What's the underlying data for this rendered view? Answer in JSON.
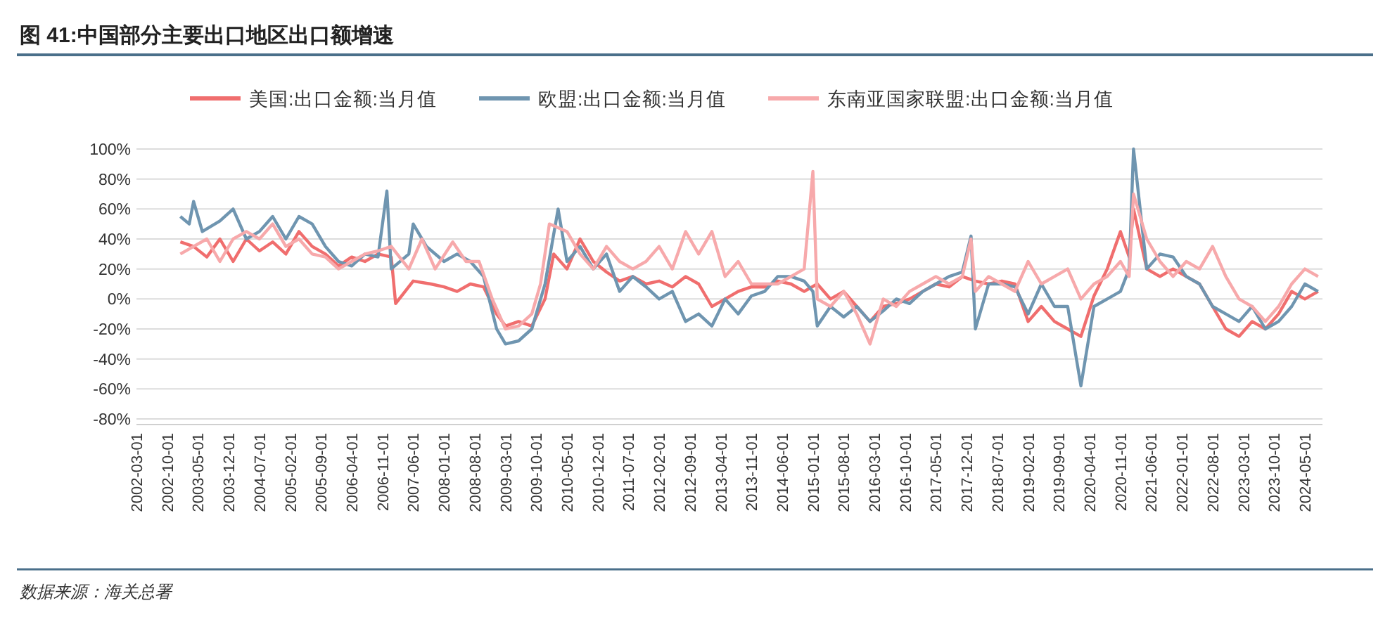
{
  "chart_data": {
    "type": "line",
    "title": "图 41:中国部分主要出口地区出口额增速",
    "annotations": [
      "数据来源：海关总署"
    ],
    "xlim": [
      "2002-03",
      "2024-09"
    ],
    "xticks": [
      "2002-03-01",
      "2002-10-01",
      "2003-05-01",
      "2003-12-01",
      "2004-07-01",
      "2005-02-01",
      "2005-09-01",
      "2006-04-01",
      "2006-11-01",
      "2007-06-01",
      "2008-01-01",
      "2008-08-01",
      "2009-03-01",
      "2009-10-01",
      "2010-05-01",
      "2010-12-01",
      "2011-07-01",
      "2012-02-01",
      "2012-09-01",
      "2013-04-01",
      "2013-11-01",
      "2014-06-01",
      "2015-01-01",
      "2015-08-01",
      "2016-03-01",
      "2016-10-01",
      "2017-05-01",
      "2017-12-01",
      "2018-07-01",
      "2019-02-01",
      "2019-09-01",
      "2020-04-01",
      "2020-11-01",
      "2021-06-01",
      "2022-01-01",
      "2022-08-01",
      "2023-03-01",
      "2023-10-01",
      "2024-05-01"
    ],
    "ylim": [
      -80,
      100
    ],
    "yticks": [
      {
        "value": -80,
        "label": "-80%"
      },
      {
        "value": -60,
        "label": "-60%"
      },
      {
        "value": -40,
        "label": "-40%"
      },
      {
        "value": -20,
        "label": "-20%"
      },
      {
        "value": 0,
        "label": "0%"
      },
      {
        "value": 20,
        "label": "20%"
      },
      {
        "value": 40,
        "label": "40%"
      },
      {
        "value": 60,
        "label": "60%"
      },
      {
        "value": 80,
        "label": "80%"
      },
      {
        "value": 100,
        "label": "100%"
      }
    ],
    "grid": "y",
    "legend": "top",
    "marker": "none",
    "line_style": "solid",
    "series": [
      {
        "name": "美国:出口金额:当月值",
        "color": "#f06e6e",
        "x": [
          "2003-01",
          "2003-04",
          "2003-07",
          "2003-10",
          "2004-01",
          "2004-04",
          "2004-07",
          "2004-10",
          "2005-01",
          "2005-04",
          "2005-07",
          "2005-10",
          "2006-01",
          "2006-04",
          "2006-07",
          "2006-10",
          "2007-01",
          "2007-02",
          "2007-06",
          "2007-10",
          "2008-01",
          "2008-04",
          "2008-07",
          "2008-10",
          "2009-01",
          "2009-03",
          "2009-06",
          "2009-09",
          "2009-12",
          "2010-02",
          "2010-05",
          "2010-08",
          "2010-11",
          "2011-02",
          "2011-05",
          "2011-08",
          "2011-11",
          "2012-02",
          "2012-05",
          "2012-08",
          "2012-11",
          "2013-02",
          "2013-05",
          "2013-08",
          "2013-11",
          "2014-02",
          "2014-05",
          "2014-08",
          "2014-11",
          "2015-02",
          "2015-05",
          "2015-08",
          "2015-11",
          "2016-02",
          "2016-05",
          "2016-08",
          "2016-11",
          "2017-02",
          "2017-05",
          "2017-08",
          "2017-11",
          "2018-02",
          "2018-05",
          "2018-08",
          "2018-11",
          "2019-02",
          "2019-05",
          "2019-08",
          "2019-11",
          "2020-02",
          "2020-05",
          "2020-08",
          "2020-11",
          "2021-01",
          "2021-02",
          "2021-05",
          "2021-08",
          "2021-11",
          "2022-02",
          "2022-05",
          "2022-08",
          "2022-11",
          "2023-02",
          "2023-05",
          "2023-08",
          "2023-11",
          "2024-02",
          "2024-05",
          "2024-08"
        ],
        "values": [
          38,
          35,
          28,
          40,
          25,
          40,
          32,
          38,
          30,
          45,
          35,
          30,
          22,
          28,
          25,
          30,
          28,
          -3,
          12,
          10,
          8,
          5,
          10,
          8,
          -10,
          -18,
          -15,
          -18,
          0,
          30,
          20,
          40,
          25,
          18,
          12,
          15,
          10,
          12,
          8,
          15,
          10,
          -5,
          0,
          5,
          8,
          8,
          12,
          10,
          5,
          10,
          0,
          5,
          -5,
          -15,
          -5,
          -3,
          0,
          5,
          10,
          8,
          15,
          12,
          10,
          12,
          10,
          -15,
          -5,
          -15,
          -20,
          -25,
          2,
          20,
          45,
          28,
          60,
          20,
          15,
          20,
          15,
          10,
          -5,
          -20,
          -25,
          -15,
          -20,
          -10,
          5,
          0,
          5
        ]
      },
      {
        "name": "欧盟:出口金额:当月值",
        "color": "#6f95b0",
        "x": [
          "2003-01",
          "2003-03",
          "2003-04",
          "2003-06",
          "2003-10",
          "2004-01",
          "2004-04",
          "2004-07",
          "2004-10",
          "2005-01",
          "2005-04",
          "2005-07",
          "2005-10",
          "2006-01",
          "2006-04",
          "2006-07",
          "2006-10",
          "2006-12",
          "2007-01",
          "2007-05",
          "2007-06",
          "2007-09",
          "2008-01",
          "2008-04",
          "2008-07",
          "2008-10",
          "2009-01",
          "2009-03",
          "2009-06",
          "2009-09",
          "2009-12",
          "2010-03",
          "2010-05",
          "2010-08",
          "2010-11",
          "2011-02",
          "2011-05",
          "2011-08",
          "2011-11",
          "2012-02",
          "2012-05",
          "2012-08",
          "2012-11",
          "2013-02",
          "2013-05",
          "2013-08",
          "2013-11",
          "2014-02",
          "2014-05",
          "2014-08",
          "2014-11",
          "2015-01",
          "2015-02",
          "2015-05",
          "2015-08",
          "2015-11",
          "2016-02",
          "2016-05",
          "2016-08",
          "2016-11",
          "2017-02",
          "2017-05",
          "2017-08",
          "2017-11",
          "2018-01",
          "2018-02",
          "2018-05",
          "2018-08",
          "2018-11",
          "2019-02",
          "2019-05",
          "2019-08",
          "2019-11",
          "2020-02",
          "2020-05",
          "2020-08",
          "2020-11",
          "2021-01",
          "2021-02",
          "2021-05",
          "2021-08",
          "2021-11",
          "2022-02",
          "2022-05",
          "2022-08",
          "2022-11",
          "2023-02",
          "2023-05",
          "2023-08",
          "2023-11",
          "2024-02",
          "2024-05",
          "2024-08"
        ],
        "values": [
          55,
          50,
          65,
          45,
          52,
          60,
          40,
          45,
          55,
          40,
          55,
          50,
          35,
          25,
          22,
          30,
          28,
          72,
          20,
          30,
          50,
          35,
          25,
          30,
          25,
          15,
          -20,
          -30,
          -28,
          -20,
          10,
          60,
          25,
          35,
          20,
          30,
          5,
          15,
          8,
          0,
          5,
          -15,
          -10,
          -18,
          0,
          -10,
          2,
          5,
          15,
          15,
          12,
          5,
          -18,
          -5,
          -12,
          -5,
          -15,
          -8,
          0,
          -3,
          5,
          10,
          15,
          18,
          42,
          -20,
          10,
          10,
          8,
          -10,
          10,
          -5,
          -5,
          -58,
          -5,
          0,
          5,
          20,
          100,
          20,
          30,
          28,
          15,
          10,
          -5,
          -10,
          -15,
          -5,
          -20,
          -15,
          -5,
          10,
          5
        ]
      },
      {
        "name": "东南亚国家联盟:出口金额:当月值",
        "color": "#f7a9ab",
        "x": [
          "2003-01",
          "2003-04",
          "2003-07",
          "2003-10",
          "2004-01",
          "2004-04",
          "2004-07",
          "2004-10",
          "2005-01",
          "2005-04",
          "2005-07",
          "2005-10",
          "2006-01",
          "2006-04",
          "2006-07",
          "2006-10",
          "2007-01",
          "2007-05",
          "2007-08",
          "2007-11",
          "2008-03",
          "2008-06",
          "2008-09",
          "2008-12",
          "2009-03",
          "2009-06",
          "2009-09",
          "2009-11",
          "2010-01",
          "2010-05",
          "2010-08",
          "2010-11",
          "2011-02",
          "2011-05",
          "2011-08",
          "2011-11",
          "2012-02",
          "2012-05",
          "2012-08",
          "2012-11",
          "2013-02",
          "2013-05",
          "2013-08",
          "2013-11",
          "2014-02",
          "2014-05",
          "2014-08",
          "2014-11",
          "2015-01",
          "2015-02",
          "2015-05",
          "2015-08",
          "2015-11",
          "2016-02",
          "2016-05",
          "2016-08",
          "2016-11",
          "2017-02",
          "2017-05",
          "2017-08",
          "2017-11",
          "2018-01",
          "2018-02",
          "2018-05",
          "2018-08",
          "2018-11",
          "2019-02",
          "2019-05",
          "2019-08",
          "2019-11",
          "2020-02",
          "2020-05",
          "2020-08",
          "2020-11",
          "2021-01",
          "2021-02",
          "2021-05",
          "2021-08",
          "2021-11",
          "2022-02",
          "2022-05",
          "2022-08",
          "2022-11",
          "2023-02",
          "2023-05",
          "2023-08",
          "2023-11",
          "2024-02",
          "2024-05",
          "2024-08"
        ],
        "values": [
          30,
          35,
          40,
          25,
          40,
          45,
          40,
          50,
          35,
          40,
          30,
          28,
          20,
          25,
          30,
          32,
          35,
          20,
          40,
          20,
          38,
          25,
          25,
          0,
          -20,
          -18,
          -10,
          10,
          50,
          45,
          30,
          20,
          35,
          25,
          20,
          25,
          35,
          20,
          45,
          30,
          45,
          15,
          25,
          10,
          10,
          10,
          15,
          20,
          85,
          0,
          -5,
          5,
          -10,
          -30,
          0,
          -5,
          5,
          10,
          15,
          10,
          15,
          40,
          5,
          15,
          10,
          5,
          25,
          10,
          15,
          20,
          0,
          10,
          15,
          25,
          15,
          70,
          40,
          25,
          15,
          25,
          20,
          35,
          15,
          0,
          -5,
          -15,
          -5,
          10,
          20,
          15
        ]
      }
    ]
  }
}
